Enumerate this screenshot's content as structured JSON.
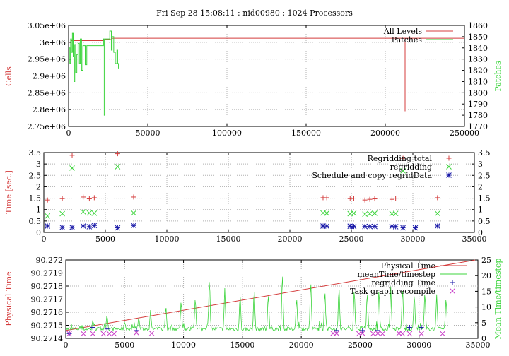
{
  "title": "Fri Sep 28 15:08:11 : nid00980 : 1024 Processors",
  "colors": {
    "red": "#d43c3c",
    "green": "#3cd43c",
    "blue": "#1a1aa8",
    "magenta": "#c840c8",
    "frame": "#000000",
    "grid": "#b0b0b0"
  },
  "chart_data": [
    {
      "type": "line",
      "ylabel": "Cells",
      "y2label": "Patches",
      "xlim": [
        0,
        250000
      ],
      "ylim": [
        2750000,
        3050000
      ],
      "y2lim": [
        1770,
        1860
      ],
      "xticks": [
        "0",
        "50000",
        "100000",
        "150000",
        "200000",
        "250000"
      ],
      "yticks": [
        "2.75e+06",
        "2.8e+06",
        "2.85e+06",
        "2.9e+06",
        "2.95e+06",
        "3e+06",
        "3.05e+06"
      ],
      "y2ticks": [
        "1770",
        "1780",
        "1790",
        "1800",
        "1810",
        "1820",
        "1830",
        "1840",
        "1850",
        "1860"
      ],
      "legend_position": "top-right",
      "grid": true,
      "series": [
        {
          "name": "All Levels",
          "axis": "left",
          "color": "#d43c3c",
          "style": "step",
          "points": [
            [
              0,
              3000000
            ],
            [
              1500,
              3005000
            ],
            [
              20000,
              3005000
            ],
            [
              22000,
              3008000
            ],
            [
              25000,
              3008000
            ],
            [
              27000,
              3012000
            ],
            [
              212000,
              3012000
            ],
            [
              212500,
              2795000
            ],
            [
              212500,
              3012000
            ],
            [
              250000,
              3012000
            ]
          ]
        },
        {
          "name": "Patches",
          "axis": "right",
          "color": "#3cd43c",
          "style": "step",
          "points": [
            [
              0,
              1840
            ],
            [
              800,
              1826
            ],
            [
              1300,
              1848
            ],
            [
              1800,
              1836
            ],
            [
              2400,
              1853
            ],
            [
              2900,
              1832
            ],
            [
              3400,
              1810
            ],
            [
              3900,
              1843
            ],
            [
              4500,
              1818
            ],
            [
              5200,
              1834
            ],
            [
              6000,
              1844
            ],
            [
              6800,
              1826
            ],
            [
              7400,
              1848
            ],
            [
              8200,
              1820
            ],
            [
              9000,
              1842
            ],
            [
              10000,
              1842
            ],
            [
              10500,
              1825
            ],
            [
              11500,
              1842
            ],
            [
              21000,
              1842
            ],
            [
              22000,
              1848
            ],
            [
              22500,
              1780
            ],
            [
              23000,
              1848
            ],
            [
              25000,
              1848
            ],
            [
              26000,
              1855
            ],
            [
              27000,
              1838
            ],
            [
              27500,
              1850
            ],
            [
              28500,
              1836
            ],
            [
              29500,
              1826
            ],
            [
              30500,
              1838
            ],
            [
              31000,
              1826
            ],
            [
              31500,
              1822
            ],
            [
              32000,
              1822
            ]
          ]
        }
      ]
    },
    {
      "type": "scatter",
      "ylabel": "Time [sec.]",
      "xlim": [
        0,
        35000
      ],
      "ylim": [
        0,
        3.5
      ],
      "y2lim": [
        0,
        3.5
      ],
      "xticks": [
        "0",
        "5000",
        "10000",
        "15000",
        "20000",
        "25000",
        "30000",
        "35000"
      ],
      "yticks": [
        "0",
        "0.5",
        "1",
        "1.5",
        "2",
        "2.5",
        "3",
        "3.5"
      ],
      "y2ticks": [
        "0",
        "0.5",
        "1",
        "1.5",
        "2",
        "2.5",
        "3",
        "3.5"
      ],
      "legend_position": "top-right",
      "grid": true,
      "series": [
        {
          "name": "Regridding total",
          "marker": "plus",
          "color": "#d43c3c",
          "points": [
            [
              300,
              1.42
            ],
            [
              1500,
              1.48
            ],
            [
              2300,
              3.38
            ],
            [
              3200,
              1.55
            ],
            [
              3700,
              1.47
            ],
            [
              4100,
              1.52
            ],
            [
              6000,
              3.45
            ],
            [
              7300,
              1.55
            ],
            [
              22700,
              1.52
            ],
            [
              23000,
              1.52
            ],
            [
              24900,
              1.48
            ],
            [
              25200,
              1.5
            ],
            [
              26100,
              1.42
            ],
            [
              26500,
              1.45
            ],
            [
              26900,
              1.47
            ],
            [
              28300,
              1.45
            ],
            [
              28600,
              1.5
            ],
            [
              29200,
              3.25
            ],
            [
              32000,
              1.52
            ]
          ]
        },
        {
          "name": "regridding",
          "marker": "x",
          "color": "#3cd43c",
          "points": [
            [
              300,
              0.72
            ],
            [
              1500,
              0.82
            ],
            [
              2300,
              2.82
            ],
            [
              3200,
              0.9
            ],
            [
              3700,
              0.85
            ],
            [
              4100,
              0.84
            ],
            [
              6000,
              2.88
            ],
            [
              7300,
              0.85
            ],
            [
              22700,
              0.85
            ],
            [
              23000,
              0.84
            ],
            [
              24900,
              0.82
            ],
            [
              25200,
              0.84
            ],
            [
              26100,
              0.8
            ],
            [
              26500,
              0.82
            ],
            [
              26900,
              0.84
            ],
            [
              28300,
              0.82
            ],
            [
              28600,
              0.83
            ],
            [
              29200,
              2.7
            ],
            [
              32000,
              0.83
            ]
          ]
        },
        {
          "name": "Schedule and copy regridData",
          "marker": "asterisk",
          "color": "#1a1aa8",
          "points": [
            [
              300,
              0.28
            ],
            [
              1500,
              0.22
            ],
            [
              2300,
              0.22
            ],
            [
              3200,
              0.28
            ],
            [
              3700,
              0.25
            ],
            [
              4100,
              0.3
            ],
            [
              6000,
              0.2
            ],
            [
              7300,
              0.3
            ],
            [
              22700,
              0.28
            ],
            [
              23000,
              0.27
            ],
            [
              24900,
              0.27
            ],
            [
              25200,
              0.26
            ],
            [
              26100,
              0.26
            ],
            [
              26500,
              0.26
            ],
            [
              26900,
              0.26
            ],
            [
              28300,
              0.26
            ],
            [
              28600,
              0.25
            ],
            [
              29200,
              0.2
            ],
            [
              30200,
              0.2
            ],
            [
              32000,
              0.28
            ]
          ]
        }
      ]
    },
    {
      "type": "line",
      "ylabel": "Physical Time",
      "y2label": "Mean Time/timestep",
      "xlim": [
        0,
        35000
      ],
      "ylim": [
        90.2714,
        90.272
      ],
      "y2lim": [
        0,
        25
      ],
      "xticks": [
        "0",
        "5000",
        "10000",
        "15000",
        "20000",
        "25000",
        "30000",
        "35000"
      ],
      "yticks": [
        "90.2714",
        "90.2715",
        "90.2716",
        "90.2717",
        "90.2718",
        "90.2719",
        "90.272"
      ],
      "y2ticks": [
        "0",
        "5",
        "10",
        "15",
        "20",
        "25"
      ],
      "legend_position": "top-right",
      "grid": true,
      "series": [
        {
          "name": "Physical Time",
          "axis": "left",
          "color": "#d43c3c",
          "style": "line",
          "points": [
            [
              0,
              90.27146
            ],
            [
              34800,
              90.272
            ]
          ]
        },
        {
          "name": "meanTime/timestep",
          "axis": "right",
          "color": "#3cd43c",
          "style": "line",
          "baseline": 3,
          "noise_seed": 7,
          "x_end": 32400,
          "spikes": [
            [
              2300,
              6
            ],
            [
              3500,
              8
            ],
            [
              5000,
              5.5
            ],
            [
              6200,
              7
            ],
            [
              7200,
              9
            ],
            [
              8500,
              11
            ],
            [
              9800,
              13
            ],
            [
              11000,
              14
            ],
            [
              12200,
              21
            ],
            [
              13500,
              16
            ],
            [
              14800,
              15
            ],
            [
              16000,
              17
            ],
            [
              17200,
              15.5
            ],
            [
              18400,
              23
            ],
            [
              19600,
              14
            ],
            [
              20800,
              20
            ],
            [
              22000,
              16.5
            ],
            [
              23200,
              18
            ],
            [
              24500,
              17
            ],
            [
              25600,
              16
            ],
            [
              26600,
              17
            ],
            [
              27600,
              16.5
            ],
            [
              28600,
              17.5
            ],
            [
              29600,
              15.5
            ],
            [
              30500,
              16
            ],
            [
              31500,
              14
            ],
            [
              32300,
              14
            ]
          ]
        },
        {
          "name": "regridding Time",
          "axis": "right",
          "marker": "plus",
          "color": "#1a1aa8",
          "points": [
            [
              300,
              1.5
            ],
            [
              2300,
              3.5
            ],
            [
              3500,
              3
            ],
            [
              6000,
              2.5
            ],
            [
              23000,
              2.5
            ],
            [
              25200,
              2.5
            ],
            [
              26500,
              2.5
            ],
            [
              29200,
              3.5
            ],
            [
              30200,
              3.5
            ]
          ]
        },
        {
          "name": "Task graph recompile",
          "axis": "right",
          "marker": "x",
          "color": "#c840c8",
          "points": [
            [
              300,
              1.5
            ],
            [
              1500,
              1.5
            ],
            [
              2300,
              1.5
            ],
            [
              3200,
              1.5
            ],
            [
              3700,
              1.5
            ],
            [
              4100,
              1.5
            ],
            [
              6000,
              1.8
            ],
            [
              7300,
              1.6
            ],
            [
              22700,
              1.6
            ],
            [
              23000,
              1.6
            ],
            [
              24900,
              1.5
            ],
            [
              25200,
              1.6
            ],
            [
              26100,
              1.5
            ],
            [
              26500,
              1.6
            ],
            [
              26900,
              1.5
            ],
            [
              28300,
              1.6
            ],
            [
              28600,
              1.5
            ],
            [
              29200,
              1.5
            ],
            [
              30200,
              1.5
            ],
            [
              32000,
              1.5
            ]
          ]
        }
      ]
    }
  ]
}
